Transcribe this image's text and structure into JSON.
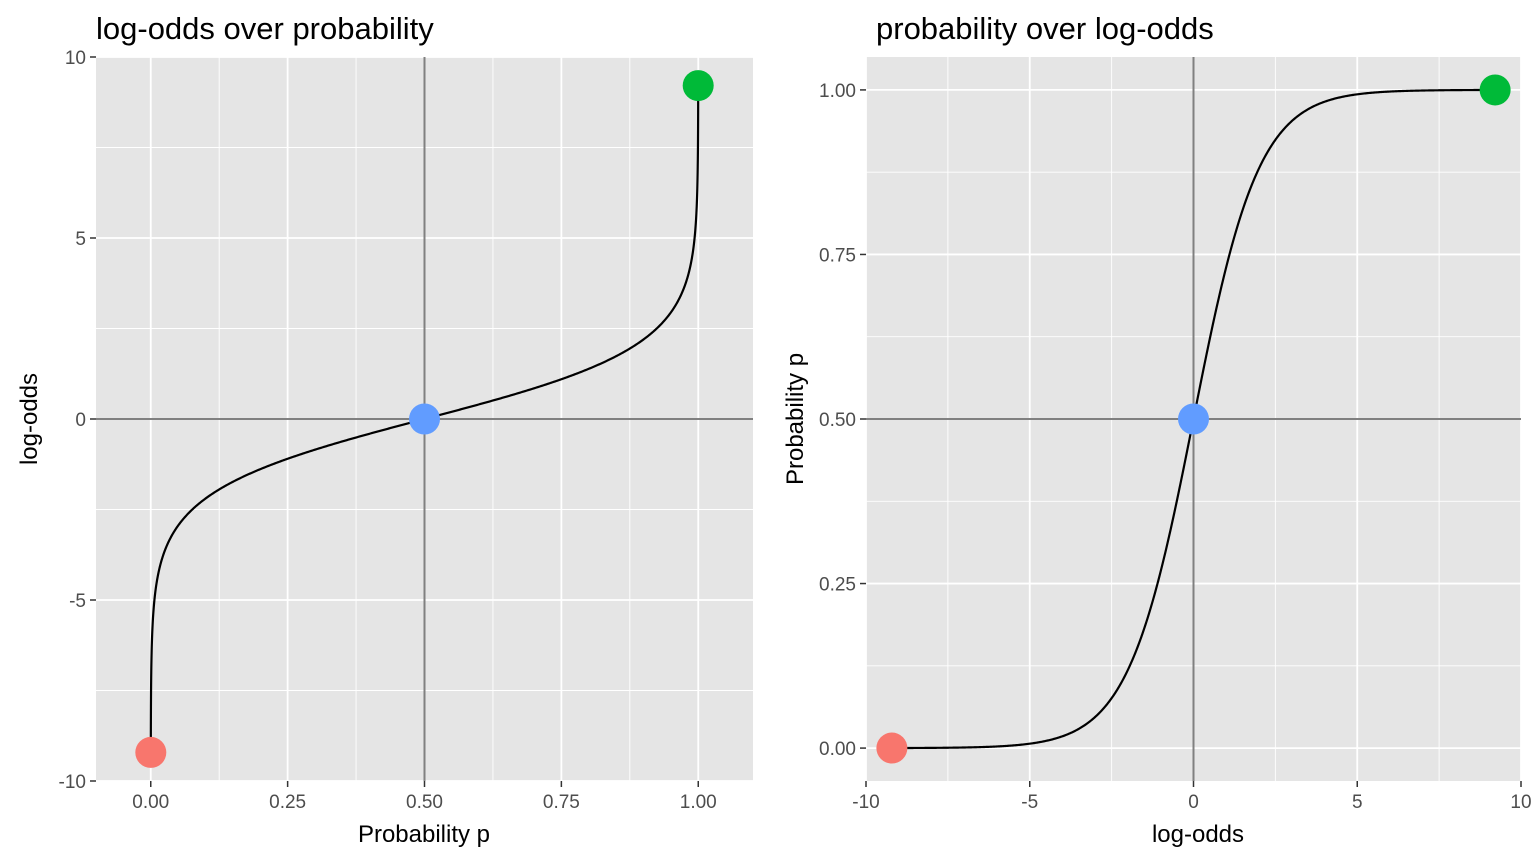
{
  "chart_data": [
    {
      "type": "line",
      "title": "log-odds over probability",
      "xlabel": "Probability p",
      "ylabel": "log-odds",
      "xlim": [
        -0.1,
        1.1
      ],
      "ylim": [
        -10,
        10
      ],
      "x_ticks": [
        0.0,
        0.25,
        0.5,
        0.75,
        1.0
      ],
      "x_tick_labels": [
        "0.00",
        "0.25",
        "0.50",
        "0.75",
        "1.00"
      ],
      "y_ticks": [
        -10,
        -5,
        0,
        5,
        10
      ],
      "y_tick_labels": [
        "-10",
        "-5",
        "0",
        "5",
        "10"
      ],
      "reference_lines": {
        "x": 0.5,
        "y": 0
      },
      "curve": "logit",
      "curve_domain": [
        0.0001,
        0.9999
      ],
      "curve_color": "#000000",
      "points": [
        {
          "x": 0.0001,
          "y": -9.21,
          "color": "#F8766D"
        },
        {
          "x": 0.5,
          "y": 0,
          "color": "#619CFF"
        },
        {
          "x": 0.9999,
          "y": 9.21,
          "color": "#00BA38"
        }
      ],
      "grid": true
    },
    {
      "type": "line",
      "title": "probability over log-odds",
      "xlabel": "log-odds",
      "ylabel": "Probability p",
      "xlim": [
        -10,
        10
      ],
      "ylim": [
        -0.05,
        1.05
      ],
      "x_ticks": [
        -10,
        -5,
        0,
        5,
        10
      ],
      "x_tick_labels": [
        "-10",
        "-5",
        "0",
        "5",
        "10"
      ],
      "y_ticks": [
        0.0,
        0.25,
        0.5,
        0.75,
        1.0
      ],
      "y_tick_labels": [
        "0.00",
        "0.25",
        "0.50",
        "0.75",
        "1.00"
      ],
      "reference_lines": {
        "x": 0,
        "y": 0.5
      },
      "curve": "logistic",
      "curve_domain": [
        -9.21,
        9.21
      ],
      "curve_color": "#000000",
      "points": [
        {
          "x": -9.21,
          "y": 0.0001,
          "color": "#F8766D"
        },
        {
          "x": 0,
          "y": 0.5,
          "color": "#619CFF"
        },
        {
          "x": 9.21,
          "y": 0.9999,
          "color": "#00BA38"
        }
      ],
      "grid": true
    }
  ]
}
